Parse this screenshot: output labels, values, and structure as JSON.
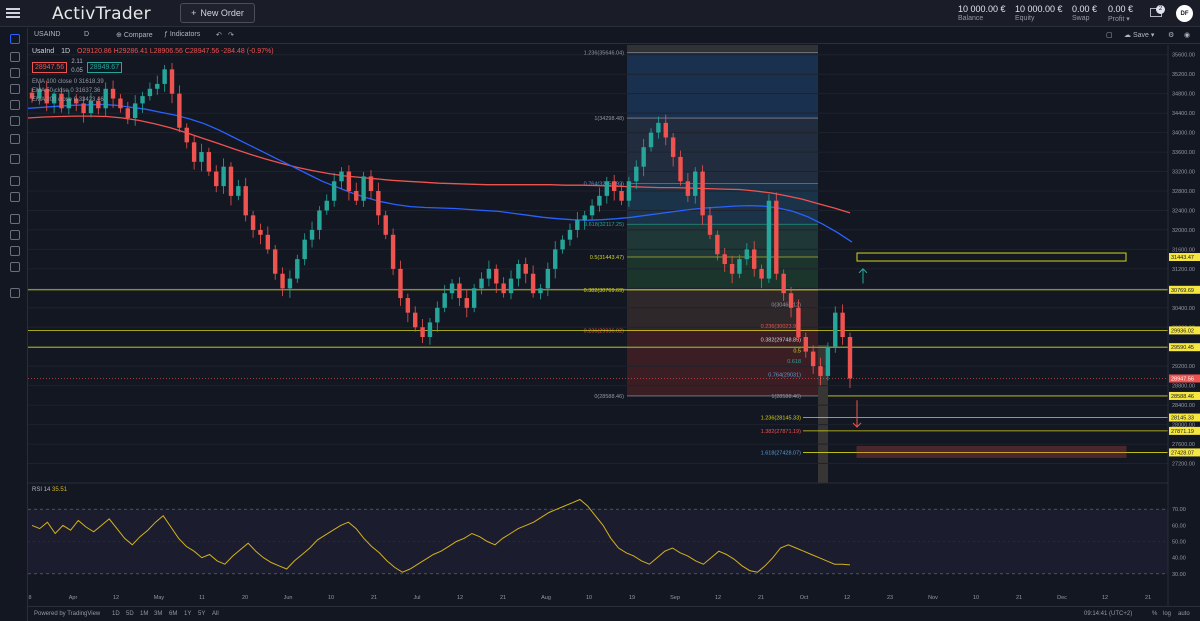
{
  "header": {
    "logo": "ActivTrader",
    "new_order": "New Order",
    "account": [
      {
        "value": "10 000.00 €",
        "label": "Balance"
      },
      {
        "value": "10 000.00 €",
        "label": "Equity"
      },
      {
        "value": "0.00 €",
        "label": "Swap"
      },
      {
        "value": "0.00 €",
        "label": "Profit"
      }
    ],
    "notifications": "2",
    "avatar": "DF"
  },
  "toolbar": {
    "symbol": "USAIND",
    "interval": "D",
    "compare": "Compare",
    "indicators": "Indicators",
    "save": "Save"
  },
  "legend": {
    "title": "UsaInd",
    "interval": "1D",
    "ohlc": "O29120.86 H29286.41 L28906.56 C28947.56 -284.48 (-0.97%)",
    "bid": "28947.56",
    "spread_top": "2.11",
    "spread_bottom": "0.05",
    "ask": "28949.67",
    "ema1": "EMA 100 close 0 31618.39",
    "ema2": "EMA 50 close 0 31637.36",
    "ema3": "EMA 200 close 0 33423.46"
  },
  "colors": {
    "up": "#26a69a",
    "down": "#ef5350",
    "ema_fast": "#2962ff",
    "ema_slow": "#ef5350",
    "rsi": "#d4b21c",
    "fib_line": "#d4d41c"
  },
  "chart_data": {
    "type": "candlestick",
    "symbol": "UsaInd",
    "interval": "1D",
    "ylim": [
      26800,
      35800
    ],
    "y_ticks": [
      "35600.00",
      "35200.00",
      "34800.00",
      "34400.00",
      "34000.00",
      "33600.00",
      "33200.00",
      "32800.00",
      "32400.00",
      "32000.00",
      "31600.00",
      "31200.00",
      "30800.00",
      "30400.00",
      "30000.00",
      "29600.00",
      "29200.00",
      "28800.00",
      "28400.00",
      "28000.00",
      "27600.00",
      "27200.00"
    ],
    "x_ticks": [
      "8",
      "Apr",
      "12",
      "May",
      "11",
      "20",
      "Jun",
      "10",
      "21",
      "Jul",
      "12",
      "21",
      "Aug",
      "10",
      "19",
      "Sep",
      "12",
      "21",
      "Oct",
      "12",
      "23",
      "Nov",
      "10",
      "21",
      "Dec",
      "12",
      "21"
    ],
    "close_series": [
      34700,
      34900,
      34600,
      34800,
      34500,
      34700,
      34600,
      34400,
      34650,
      34500,
      34900,
      34700,
      34500,
      34300,
      34600,
      34750,
      34900,
      35000,
      35300,
      34800,
      34100,
      33800,
      33400,
      33600,
      33200,
      32900,
      33300,
      32700,
      32900,
      32300,
      32000,
      31900,
      31600,
      31100,
      30800,
      31000,
      31400,
      31800,
      32000,
      32400,
      32600,
      33000,
      33200,
      32800,
      32600,
      33100,
      32800,
      32300,
      31900,
      31200,
      30600,
      30300,
      30000,
      29800,
      30100,
      30400,
      30700,
      30900,
      30600,
      30400,
      30800,
      31000,
      31200,
      30900,
      30700,
      31000,
      31300,
      31100,
      30700,
      30800,
      31200,
      31600,
      31800,
      32000,
      32200,
      32300,
      32500,
      32700,
      33000,
      32800,
      32600,
      33000,
      33300,
      33700,
      34000,
      34200,
      33900,
      33500,
      33000,
      32700,
      33200,
      32300,
      31900,
      31500,
      31300,
      31100,
      31400,
      31600,
      31200,
      31000,
      32600,
      31100,
      30700,
      30400,
      29800,
      29500,
      29200,
      29000,
      29600,
      30300,
      29800,
      28947.56
    ],
    "ema_fast": [
      34500,
      34520,
      34540,
      34560,
      34570,
      34580,
      34560,
      34520,
      34480,
      34420,
      34360,
      34280,
      34180,
      34050,
      33900,
      33750,
      33600,
      33450,
      33300,
      33150,
      33000,
      32880,
      32760,
      32660,
      32580,
      32520,
      32480,
      32460,
      32450,
      32440,
      32420,
      32400,
      32380,
      32340,
      32300,
      32260,
      32230,
      32210,
      32200,
      32210,
      32230,
      32260,
      32300,
      32340,
      32380,
      32420,
      32450,
      32470,
      32490,
      32500,
      32490,
      32450,
      32380,
      32270,
      32120,
      31950,
      31750
    ],
    "ema_slow": [
      34300,
      34320,
      34330,
      34340,
      34340,
      34330,
      34300,
      34250,
      34180,
      34100,
      34000,
      33890,
      33780,
      33670,
      33560,
      33460,
      33370,
      33290,
      33220,
      33160,
      33110,
      33080,
      33050,
      33020,
      33000,
      32980,
      32960,
      32950,
      32940,
      32930,
      32930,
      32930,
      32930,
      32930,
      32920,
      32920,
      32910,
      32900,
      32890,
      32880,
      32870,
      32870,
      32860,
      32850,
      32840,
      32830,
      32800,
      32760,
      32700,
      32630,
      32540,
      32450,
      32350
    ],
    "fib_levels": [
      {
        "label": "1.236(35646.04)",
        "value": 35646.04
      },
      {
        "label": "1(34298.48)",
        "value": 34298.48
      },
      {
        "label": "0.764(32950.92)",
        "value": 32950.92
      },
      {
        "label": "0.618(32117.25)",
        "value": 32117.25
      },
      {
        "label": "0.5(31443.47)",
        "value": 31443.47
      },
      {
        "label": "0.382(30769.69)",
        "value": 30769.69
      },
      {
        "label": "0.236(29936.02)",
        "value": 29936.02
      },
      {
        "label": "0(28588.46)",
        "value": 28588.46
      }
    ],
    "fib_small": [
      {
        "label": "0(30466.12)",
        "value": 30466.12
      },
      {
        "label": "0.236(30023.99)",
        "value": 30023.99
      },
      {
        "label": "0.382(29748.85)",
        "value": 29748.85
      },
      {
        "label": "0.5",
        "value": 29527.29
      },
      {
        "label": "0.618",
        "value": 29305.73
      },
      {
        "label": "0.764(29031)",
        "value": 29031.0
      },
      {
        "label": "1(28588.46)",
        "value": 28588.46
      },
      {
        "label": "1.236(28145.33)",
        "value": 28145.33
      },
      {
        "label": "1.382(27871.19)",
        "value": 27871.19
      },
      {
        "label": "1.618(27428.07)",
        "value": 27428.07
      }
    ],
    "price_tags": [
      {
        "text": "31443.47",
        "value": 31443.47,
        "style": "yellow"
      },
      {
        "text": "30769.69",
        "value": 30769.69,
        "style": "yellow"
      },
      {
        "text": "29936.02",
        "value": 29936.02,
        "style": "yellow"
      },
      {
        "text": "29590.45",
        "value": 29590.45,
        "style": "yellow"
      },
      {
        "text": "28947.56",
        "value": 28947.56,
        "style": "red"
      },
      {
        "text": "28588.46",
        "value": 28588.46,
        "style": "yellow"
      },
      {
        "text": "28145.33",
        "value": 28145.33,
        "style": "yellow"
      },
      {
        "text": "27871.19",
        "value": 27871.19,
        "style": "yellow"
      },
      {
        "text": "27428.07",
        "value": 27428.07,
        "style": "yellow"
      }
    ],
    "rsi": {
      "label": "RSI",
      "period": "14",
      "value": "35.51",
      "ylim": [
        20,
        80
      ],
      "y_ticks": [
        "70.00",
        "60.00",
        "50.00",
        "40.00",
        "30.00"
      ],
      "values": [
        60,
        58,
        62,
        55,
        60,
        57,
        63,
        59,
        56,
        60,
        64,
        58,
        52,
        48,
        53,
        57,
        62,
        66,
        59,
        52,
        47,
        44,
        40,
        42,
        38,
        36,
        41,
        45,
        49,
        44,
        40,
        37,
        35,
        33,
        38,
        42,
        46,
        51,
        54,
        57,
        60,
        62,
        58,
        52,
        47,
        43,
        38,
        34,
        31,
        33,
        36,
        39,
        42,
        44,
        47,
        50,
        52,
        55,
        53,
        50,
        48,
        52,
        55,
        58,
        60,
        62,
        65,
        68,
        70,
        72,
        74,
        76,
        72,
        66,
        60,
        52,
        46,
        43,
        41,
        38,
        36,
        40,
        44,
        46,
        43,
        41,
        38,
        36,
        40,
        44,
        42,
        39,
        35,
        32,
        31,
        35,
        40,
        46,
        48,
        46,
        44,
        42,
        40,
        38,
        36,
        36,
        35.51
      ]
    }
  },
  "bottom": {
    "powered": "Powered by TradingView",
    "ranges": [
      "1D",
      "5D",
      "1M",
      "3M",
      "6M",
      "1Y",
      "5Y",
      "All"
    ],
    "time": "09:14:41 (UTC+2)",
    "pct": "%",
    "log": "log",
    "auto": "auto"
  }
}
